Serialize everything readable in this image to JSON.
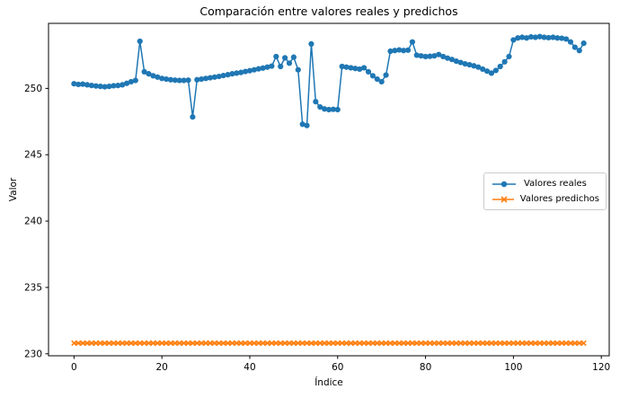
{
  "chart_data": {
    "type": "line",
    "title": "Comparación entre valores reales y predichos",
    "xlabel": "Índice",
    "ylabel": "Valor",
    "x_ticks": [
      0,
      20,
      40,
      60,
      80,
      100,
      120
    ],
    "y_ticks": [
      230,
      235,
      240,
      245,
      250
    ],
    "xlim": [
      -5.8,
      121.8
    ],
    "ylim": [
      229.85,
      254.9
    ],
    "grid": false,
    "n_points": 117,
    "legend": {
      "location": "center right",
      "entries": [
        "Valores reales",
        "Valores predichos"
      ]
    },
    "series": [
      {
        "name": "Valores reales",
        "color": "#1f77b4",
        "marker": "circle",
        "values": [
          250.35,
          250.3,
          250.32,
          250.27,
          250.22,
          250.18,
          250.15,
          250.12,
          250.15,
          250.2,
          250.22,
          250.27,
          250.38,
          250.5,
          250.6,
          253.55,
          251.25,
          251.1,
          250.95,
          250.85,
          250.75,
          250.7,
          250.65,
          250.62,
          250.6,
          250.6,
          250.62,
          247.85,
          250.65,
          250.7,
          250.75,
          250.8,
          250.85,
          250.9,
          250.97,
          251.03,
          251.1,
          251.15,
          251.2,
          251.27,
          251.33,
          251.4,
          251.47,
          251.53,
          251.6,
          251.68,
          252.4,
          251.65,
          252.3,
          251.9,
          252.35,
          251.4,
          247.3,
          247.2,
          253.35,
          249.0,
          248.6,
          248.45,
          248.4,
          248.42,
          248.4,
          251.65,
          251.6,
          251.55,
          251.5,
          251.45,
          251.55,
          251.25,
          250.95,
          250.7,
          250.5,
          251.0,
          252.8,
          252.85,
          252.9,
          252.85,
          252.88,
          253.5,
          252.5,
          252.45,
          252.4,
          252.42,
          252.45,
          252.55,
          252.4,
          252.28,
          252.18,
          252.05,
          251.95,
          251.85,
          251.78,
          251.7,
          251.6,
          251.45,
          251.3,
          251.15,
          251.35,
          251.65,
          252.0,
          252.4,
          253.65,
          253.8,
          253.85,
          253.8,
          253.88,
          253.85,
          253.9,
          253.85,
          253.82,
          253.85,
          253.8,
          253.78,
          253.72,
          253.5,
          253.1,
          252.85,
          253.4
        ]
      },
      {
        "name": "Valores predichos",
        "color": "#ff7f0e",
        "marker": "x",
        "constant_value": 230.8,
        "count": 117
      }
    ]
  }
}
